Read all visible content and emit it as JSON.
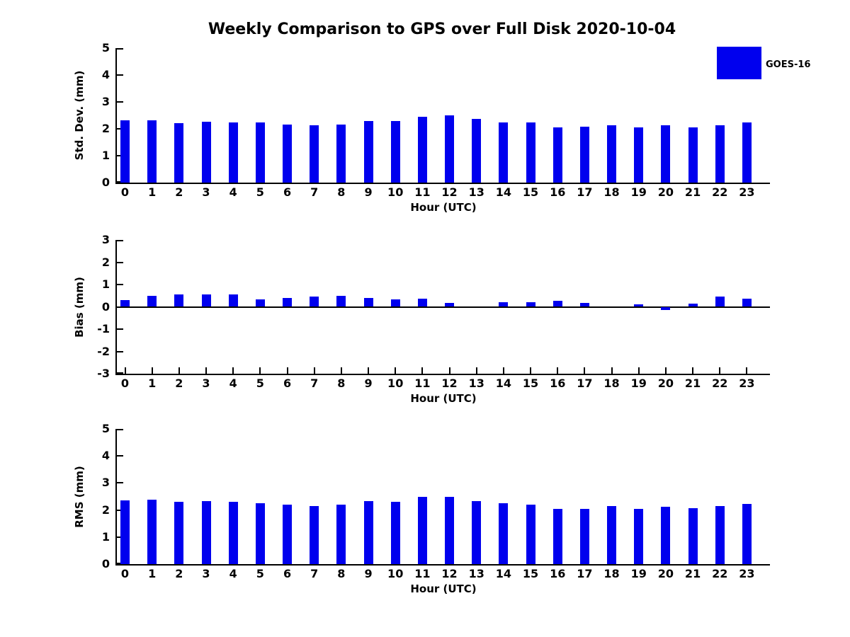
{
  "title": "Weekly Comparison to GPS over Full Disk 2020-10-04",
  "legend": {
    "label": "GOES-16",
    "color": "#0000ee",
    "position": "top-right"
  },
  "colors": {
    "bar": "#0000ee",
    "axis": "#000000",
    "text": "#000000"
  },
  "chart_data": [
    {
      "type": "bar",
      "name": "std-dev",
      "series_name": "GOES-16",
      "ylabel": "Std. Dev. (mm)",
      "xlabel": "Hour (UTC)",
      "categories": [
        "0",
        "1",
        "2",
        "3",
        "4",
        "5",
        "6",
        "7",
        "8",
        "9",
        "10",
        "11",
        "12",
        "13",
        "14",
        "15",
        "16",
        "17",
        "18",
        "19",
        "20",
        "21",
        "22",
        "23"
      ],
      "values": [
        2.32,
        2.32,
        2.22,
        2.27,
        2.25,
        2.23,
        2.17,
        2.12,
        2.16,
        2.29,
        2.3,
        2.46,
        2.5,
        2.37,
        2.25,
        2.24,
        2.06,
        2.07,
        2.14,
        2.04,
        2.12,
        2.06,
        2.12,
        2.23
      ],
      "ylim": [
        0,
        5
      ],
      "yticks": [
        0,
        1,
        2,
        3,
        4,
        5
      ],
      "grid": false
    },
    {
      "type": "bar",
      "name": "bias",
      "series_name": "GOES-16",
      "ylabel": "Bias (mm)",
      "xlabel": "Hour (UTC)",
      "categories": [
        "0",
        "1",
        "2",
        "3",
        "4",
        "5",
        "6",
        "7",
        "8",
        "9",
        "10",
        "11",
        "12",
        "13",
        "14",
        "15",
        "16",
        "17",
        "18",
        "19",
        "20",
        "21",
        "22",
        "23"
      ],
      "values": [
        0.3,
        0.48,
        0.57,
        0.57,
        0.57,
        0.33,
        0.4,
        0.45,
        0.48,
        0.4,
        0.32,
        0.38,
        0.18,
        0.0,
        0.21,
        0.22,
        0.26,
        0.18,
        0.0,
        0.12,
        -0.13,
        0.13,
        0.45,
        0.37
      ],
      "ylim": [
        -3,
        3
      ],
      "yticks": [
        3,
        2,
        1,
        0,
        -1,
        -2,
        -3
      ],
      "grid": false
    },
    {
      "type": "bar",
      "name": "rms",
      "series_name": "GOES-16",
      "ylabel": "RMS (mm)",
      "xlabel": "Hour (UTC)",
      "categories": [
        "0",
        "1",
        "2",
        "3",
        "4",
        "5",
        "6",
        "7",
        "8",
        "9",
        "10",
        "11",
        "12",
        "13",
        "14",
        "15",
        "16",
        "17",
        "18",
        "19",
        "20",
        "21",
        "22",
        "23"
      ],
      "values": [
        2.36,
        2.39,
        2.31,
        2.34,
        2.31,
        2.26,
        2.21,
        2.15,
        2.2,
        2.32,
        2.3,
        2.48,
        2.49,
        2.34,
        2.25,
        2.21,
        2.05,
        2.03,
        2.14,
        2.03,
        2.11,
        2.06,
        2.14,
        2.23
      ],
      "ylim": [
        0,
        5
      ],
      "yticks": [
        0,
        1,
        2,
        3,
        4,
        5
      ],
      "grid": false
    }
  ]
}
